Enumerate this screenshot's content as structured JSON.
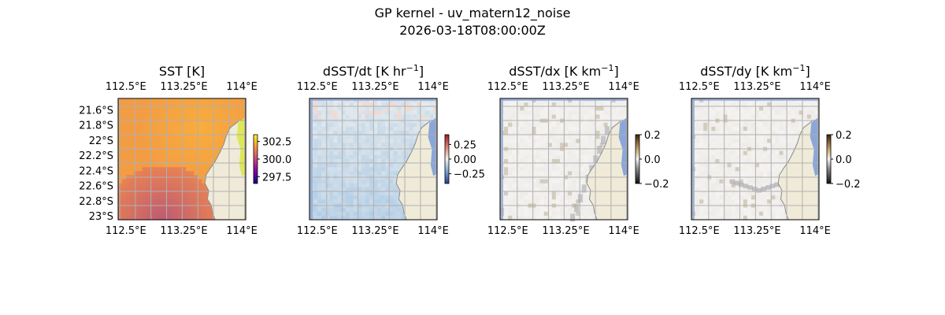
{
  "figure": {
    "title": "GP kernel - uv_matern12_noise",
    "subtitle": "2026-03-18T08:00:00Z"
  },
  "colors": {
    "land": "#efebd8",
    "ocean_edge": "#7f9fd9",
    "grid": "#b0b0b0",
    "coast": "#8a8a8a"
  },
  "chart_data": [
    {
      "type": "heatmap",
      "title": "SST [K]",
      "title_main": "SST [K]",
      "title_sup": "",
      "title_end": "",
      "xlim": [
        112.4,
        114.05
      ],
      "ylim": [
        -23.05,
        -21.45
      ],
      "x_tick_labels_top": [
        "112.5°E",
        "113.25°E",
        "114°E"
      ],
      "x_tick_labels_bottom": [
        "112.5°E",
        "113.25°E",
        "114°E"
      ],
      "y_tick_labels": [
        "21.6°S",
        "21.8°S",
        "22°S",
        "22.2°S",
        "22.4°S",
        "22.6°S",
        "22.8°S",
        "23°S"
      ],
      "colorbar": {
        "ticks": [
          302.5,
          300.0,
          297.5
        ],
        "tick_labels": [
          "302.5",
          "300.0",
          "297.5"
        ],
        "colormap": "plasma"
      }
    },
    {
      "type": "heatmap",
      "title": "dSST/dt [K hr−1]",
      "title_main": "dSST/dt [K hr",
      "title_sup": "−1",
      "title_end": "]",
      "xlim": [
        112.4,
        114.05
      ],
      "ylim": [
        -23.05,
        -21.45
      ],
      "x_tick_labels_top": [
        "112.5°E",
        "113.25°E",
        "114°E"
      ],
      "x_tick_labels_bottom": [
        "112.5°E",
        "113.25°E",
        "114°E"
      ],
      "y_tick_labels": [],
      "colorbar": {
        "ticks": [
          0.25,
          0.0,
          -0.25
        ],
        "tick_labels": [
          "0.25",
          "0.00",
          "−0.25"
        ],
        "colormap": "coolwarm"
      }
    },
    {
      "type": "heatmap",
      "title": "dSST/dx [K km−1]",
      "title_main": "dSST/dx [K km",
      "title_sup": "−1",
      "title_end": "]",
      "xlim": [
        112.4,
        114.05
      ],
      "ylim": [
        -23.05,
        -21.45
      ],
      "x_tick_labels_top": [
        "112.5°E",
        "113.25°E",
        "114°E"
      ],
      "x_tick_labels_bottom": [
        "112.5°E",
        "113.25°E",
        "114°E"
      ],
      "y_tick_labels": [],
      "colorbar": {
        "ticks": [
          0.2,
          0.0,
          -0.2
        ],
        "tick_labels": [
          "0.2",
          "0.0",
          "−0.2"
        ],
        "colormap": "brown-white-gray"
      }
    },
    {
      "type": "heatmap",
      "title": "dSST/dy [K km−1]",
      "title_main": "dSST/dy [K km",
      "title_sup": "−1",
      "title_end": "]",
      "xlim": [
        112.4,
        114.05
      ],
      "ylim": [
        -23.05,
        -21.45
      ],
      "x_tick_labels_top": [
        "112.5°E",
        "113.25°E",
        "114°E"
      ],
      "x_tick_labels_bottom": [
        "112.5°E",
        "113.25°E",
        "114°E"
      ],
      "y_tick_labels": [],
      "colorbar": {
        "ticks": [
          0.2,
          0.0,
          -0.2
        ],
        "tick_labels": [
          "0.2",
          "0.0",
          "−0.2"
        ],
        "colormap": "brown-white-gray"
      }
    }
  ]
}
